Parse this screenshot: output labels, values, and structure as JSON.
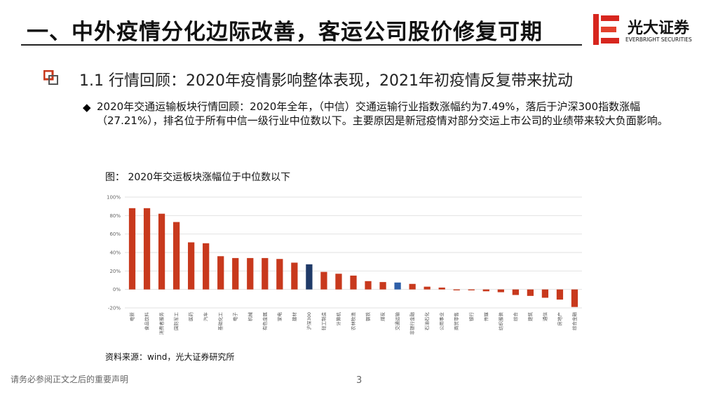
{
  "header": {
    "title": "一、中外疫情分化边际改善，客运公司股价修复可期",
    "logo_cn": "光大证券",
    "logo_en": "EVERBRIGHT SECURITIES"
  },
  "section": "1.1  行情回顾：2020年疫情影响整体表现，2021年初疫情反复带来扰动",
  "bullet": "2020年交通运输板块行情回顾：2020年全年，（中信）交通运输行业指数涨幅约为7.49%，落后于沪深300指数涨幅（27.21%），排名位于所有中信一级行业中位数以下。主要原因是新冠疫情对部分交运上市公司的业绩带来较大负面影响。",
  "chart_data": {
    "type": "bar",
    "title": "图： 2020年交运板块涨幅位于中位数以下",
    "categories": [
      "电新",
      "食品饮料",
      "消费者服务",
      "国防军工",
      "医药",
      "汽车",
      "基础化工",
      "电子",
      "机械",
      "有色金属",
      "家电",
      "建材",
      "沪深300",
      "轻工制造",
      "计算机",
      "农林牧渔",
      "钢铁",
      "煤炭",
      "交通运输",
      "非银行金融",
      "石油石化",
      "公用事业",
      "商贸零售",
      "银行",
      "传媒",
      "纺织服装",
      "综合",
      "建筑",
      "通信",
      "房地产",
      "综合金融"
    ],
    "values": [
      88,
      88,
      82,
      73,
      51,
      50,
      36,
      34,
      34,
      34,
      33,
      29,
      27.21,
      19,
      17,
      15,
      9,
      8,
      7.49,
      6,
      3,
      2,
      -1,
      -1,
      -2,
      -3,
      -6,
      -7,
      -9,
      -11,
      -19
    ],
    "colors": [
      "#c8391d",
      "#c8391d",
      "#c8391d",
      "#c8391d",
      "#c8391d",
      "#c8391d",
      "#c8391d",
      "#c8391d",
      "#c8391d",
      "#c8391d",
      "#c8391d",
      "#c8391d",
      "#1f3a68",
      "#c8391d",
      "#c8391d",
      "#c8391d",
      "#c8391d",
      "#c8391d",
      "#2f5fa8",
      "#c8391d",
      "#c8391d",
      "#c8391d",
      "#c8391d",
      "#c8391d",
      "#c8391d",
      "#c8391d",
      "#c8391d",
      "#c8391d",
      "#c8391d",
      "#c8391d",
      "#c8391d"
    ],
    "ylim": [
      -20,
      100
    ],
    "yticks": [
      {
        "value": -20,
        "label": "-20%"
      },
      {
        "value": 0,
        "label": "0%"
      },
      {
        "value": 20,
        "label": "20%"
      },
      {
        "value": 40,
        "label": "40%"
      },
      {
        "value": 60,
        "label": "60%"
      },
      {
        "value": 80,
        "label": "80%"
      },
      {
        "value": 100,
        "label": "100%"
      }
    ],
    "grid": true,
    "source": "资料来源：wind，光大证券研究所"
  },
  "footer": {
    "disclaimer": "请务必参阅正文之后的重要声明",
    "page": "3"
  }
}
